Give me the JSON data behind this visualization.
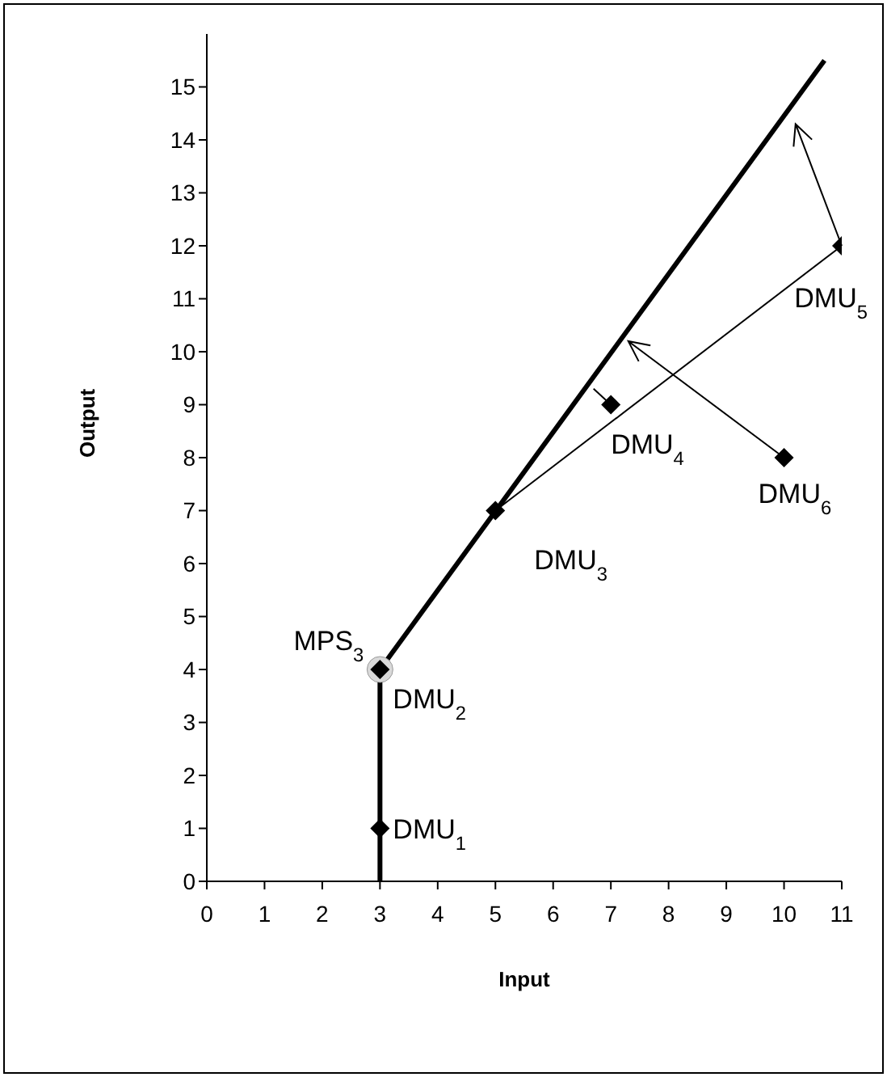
{
  "chart_data": {
    "type": "scatter",
    "xlabel": "Input",
    "ylabel": "Output",
    "xlim": [
      0,
      11
    ],
    "xticks": [
      0,
      1,
      2,
      3,
      4,
      5,
      6,
      7,
      8,
      9,
      10,
      11
    ],
    "ylim": [
      0,
      16
    ],
    "yticks": [
      0,
      1,
      2,
      3,
      4,
      5,
      6,
      7,
      8,
      9,
      10,
      11,
      12,
      13,
      14,
      15
    ],
    "grid": false,
    "series": [
      {
        "type": "line",
        "x": [
          3,
          3,
          10.7
        ],
        "values": [
          0,
          4,
          15.5
        ],
        "color": "#000000",
        "marker": "none"
      },
      {
        "type": "line",
        "x": [
          5,
          11
        ],
        "values": [
          7,
          12
        ],
        "color": "#000000",
        "marker": "none"
      },
      {
        "type": "line",
        "x": [
          7,
          6.7
        ],
        "values": [
          9,
          9.3
        ],
        "color": "#000000",
        "marker": "none"
      },
      {
        "type": "scatter",
        "x": [
          3
        ],
        "values": [
          4
        ],
        "color": "#d9d9d9",
        "marker": "circle"
      },
      {
        "x": [
          3,
          3,
          5,
          7,
          11,
          10
        ],
        "values": [
          1,
          4,
          7,
          9,
          12,
          8
        ],
        "color": "#000000",
        "marker": "diamond"
      }
    ],
    "annotations": [
      {
        "text": "DMU$_{1}$",
        "x": 3,
        "y": 1
      },
      {
        "text": "DMU$_{2}$",
        "x": 3,
        "y": 4
      },
      {
        "text": "DMU$_{3}$",
        "x": 5,
        "y": 7
      },
      {
        "text": "DMU$_{4}$",
        "x": 7,
        "y": 9
      },
      {
        "text": "DMU$_{5}$",
        "x": 11,
        "y": 12
      },
      {
        "text": "DMU$_{6}$",
        "x": 10,
        "y": 8
      },
      {
        "text": "MPS$_{3}$",
        "x": 3,
        "y": 4
      }
    ]
  }
}
